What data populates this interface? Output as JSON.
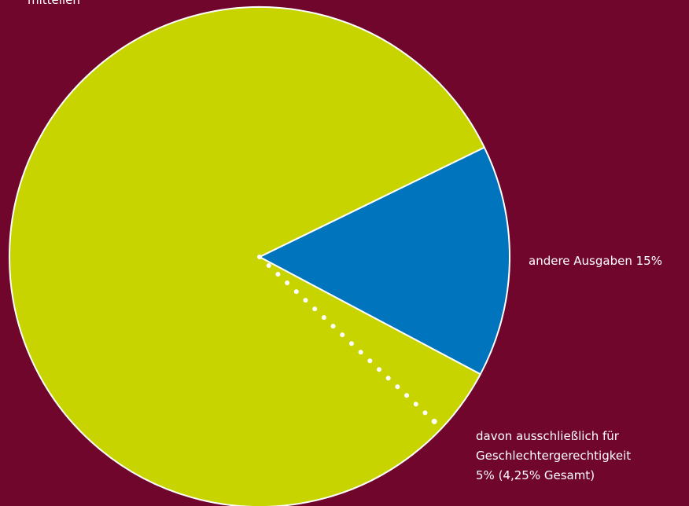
{
  "background_color": "#71062d",
  "chart_data": {
    "type": "pie",
    "slices": [
      {
        "label": "andere Ausgaben 15%",
        "value": 15,
        "color": "#0074bd"
      },
      {
        "label": "mitteilen",
        "value": 85,
        "color": "#c8d400"
      }
    ],
    "sub_slice": {
      "parent": "mitteilen",
      "label_lines": [
        "davon ausschließlich für",
        "Geschlechtergerechtigkeit",
        "5% (4,25% Gesamt)"
      ],
      "value_percent_of_parent": 5,
      "value_percent_total": 4.25,
      "separator_style": "dotted"
    }
  }
}
